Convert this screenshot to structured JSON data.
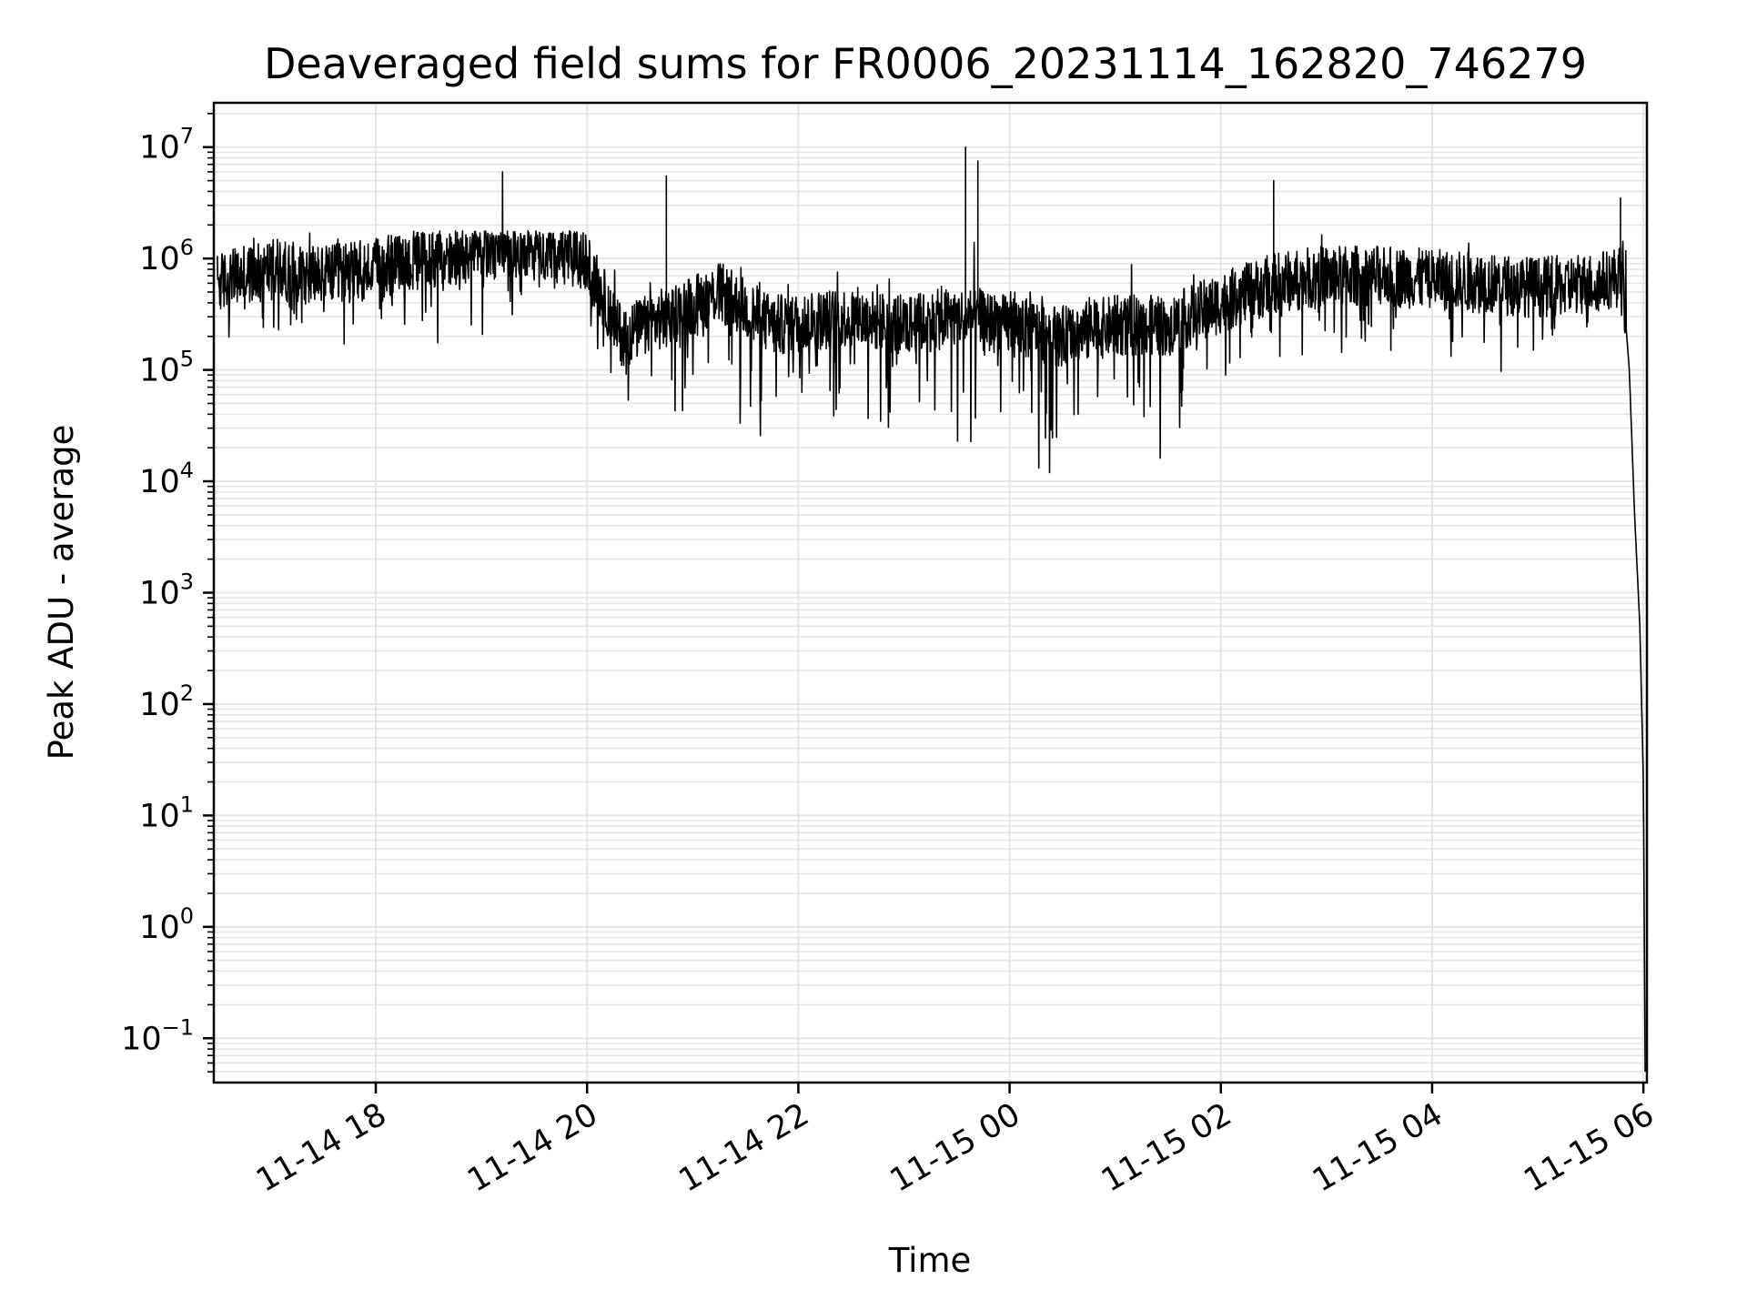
{
  "chart_data": {
    "type": "line",
    "title": "Deaveraged field sums for FR0006_20231114_162820_746279",
    "xlabel": "Time",
    "ylabel": "Peak ADU - average",
    "yscale": "log",
    "xlim": [
      "2023-11-14 16:28",
      "2023-11-15 06:02"
    ],
    "ylim": [
      0.04,
      25000000
    ],
    "grid": true,
    "grid_color": "#e6e6e6",
    "line_color": "#000000",
    "x_ticks": [
      {
        "value": "2023-11-14 18:00",
        "label": "11-14 18"
      },
      {
        "value": "2023-11-14 20:00",
        "label": "11-14 20"
      },
      {
        "value": "2023-11-14 22:00",
        "label": "11-14 22"
      },
      {
        "value": "2023-11-15 00:00",
        "label": "11-15 00"
      },
      {
        "value": "2023-11-15 02:00",
        "label": "11-15 02"
      },
      {
        "value": "2023-11-15 04:00",
        "label": "11-15 04"
      },
      {
        "value": "2023-11-15 06:00",
        "label": "11-15 06"
      }
    ],
    "y_ticks": [
      {
        "exponent": -1,
        "base": "10",
        "sup": "−1"
      },
      {
        "exponent": 0,
        "base": "10",
        "sup": "0"
      },
      {
        "exponent": 1,
        "base": "10",
        "sup": "1"
      },
      {
        "exponent": 2,
        "base": "10",
        "sup": "2"
      },
      {
        "exponent": 3,
        "base": "10",
        "sup": "3"
      },
      {
        "exponent": 4,
        "base": "10",
        "sup": "4"
      },
      {
        "exponent": 5,
        "base": "10",
        "sup": "5"
      },
      {
        "exponent": 6,
        "base": "10",
        "sup": "6"
      },
      {
        "exponent": 7,
        "base": "10",
        "sup": "7"
      }
    ],
    "series": [
      {
        "points": [
          [
            "2023-11-14 16:30",
            600000
          ],
          [
            "2023-11-14 17:00",
            800000
          ],
          [
            "2023-11-14 17:30",
            700000
          ],
          [
            "2023-11-14 18:00",
            800000
          ],
          [
            "2023-11-14 18:30",
            1000000
          ],
          [
            "2023-11-14 19:00",
            1200000
          ],
          [
            "2023-11-14 19:30",
            1300000
          ],
          [
            "2023-11-14 20:00",
            900000
          ],
          [
            "2023-11-14 20:20",
            200000
          ],
          [
            "2023-11-14 20:45",
            300000
          ],
          [
            "2023-11-14 21:15",
            500000
          ],
          [
            "2023-11-14 21:45",
            250000
          ],
          [
            "2023-11-14 22:30",
            300000
          ],
          [
            "2023-11-14 23:00",
            250000
          ],
          [
            "2023-11-14 23:30",
            300000
          ],
          [
            "2023-11-15 00:00",
            250000
          ],
          [
            "2023-11-15 00:30",
            200000
          ],
          [
            "2023-11-15 01:00",
            250000
          ],
          [
            "2023-11-15 01:30",
            250000
          ],
          [
            "2023-11-15 02:00",
            400000
          ],
          [
            "2023-11-15 02:30",
            600000
          ],
          [
            "2023-11-15 03:00",
            700000
          ],
          [
            "2023-11-15 03:30",
            700000
          ],
          [
            "2023-11-15 04:00",
            650000
          ],
          [
            "2023-11-15 04:30",
            600000
          ],
          [
            "2023-11-15 05:00",
            550000
          ],
          [
            "2023-11-15 05:30",
            600000
          ],
          [
            "2023-11-15 05:48",
            700000
          ],
          [
            "2023-11-15 05:52",
            100000
          ],
          [
            "2023-11-15 05:55",
            5000
          ],
          [
            "2023-11-15 05:58",
            500
          ],
          [
            "2023-11-15 06:00",
            20
          ],
          [
            "2023-11-15 06:01",
            0.05
          ]
        ],
        "spikes": [
          [
            "2023-11-14 19:12",
            6000000
          ],
          [
            "2023-11-14 20:45",
            5500000
          ],
          [
            "2023-11-14 23:35",
            10000000
          ],
          [
            "2023-11-14 23:42",
            7500000
          ],
          [
            "2023-11-15 02:30",
            5000000
          ],
          [
            "2023-11-15 05:47",
            3500000
          ]
        ]
      }
    ]
  }
}
